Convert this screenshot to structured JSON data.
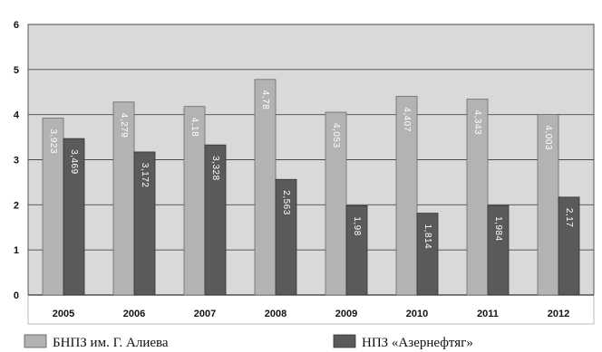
{
  "chart_data": {
    "type": "bar",
    "categories": [
      "2005",
      "2006",
      "2007",
      "2008",
      "2009",
      "2010",
      "2011",
      "2012"
    ],
    "series": [
      {
        "name": "БНПЗ им. Г. Алиева",
        "color": "#b3b3b3",
        "values": [
          3.923,
          4.279,
          4.18,
          4.78,
          4.053,
          4.407,
          4.343,
          4.003
        ],
        "labels": [
          "3,923",
          "4,279",
          "4,18",
          "4,78",
          "4,053",
          "4,407",
          "4,343",
          "4,003"
        ]
      },
      {
        "name": "НПЗ «Азернефтяг»",
        "color": "#5a5a5a",
        "values": [
          3.469,
          3.172,
          3.328,
          2.563,
          1.98,
          1.814,
          1.984,
          2.17
        ],
        "labels": [
          "3,469",
          "3,172",
          "3,328",
          "2,563",
          "1,98",
          "1,814",
          "1,984",
          "2,17"
        ]
      }
    ],
    "yticks": [
      0,
      1,
      2,
      3,
      4,
      5,
      6
    ],
    "ylim": [
      0,
      6
    ],
    "grid": true,
    "legend": "bottom",
    "plot_background": "#d9d9d9"
  }
}
